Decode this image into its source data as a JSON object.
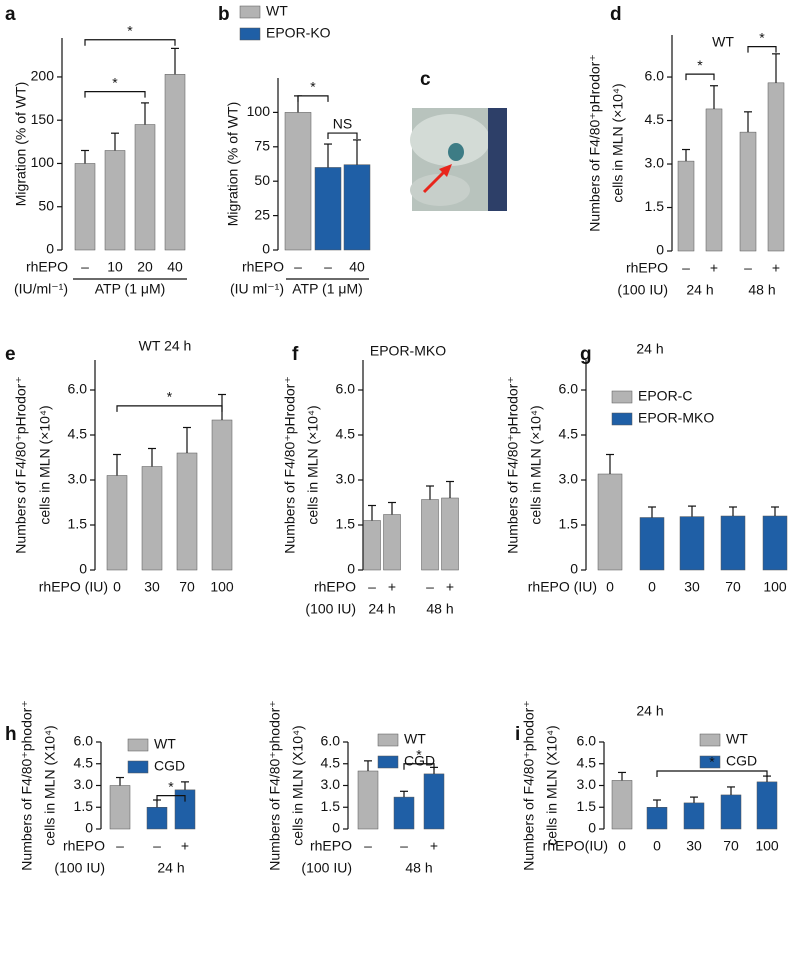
{
  "chart_data": [
    {
      "type": "bar",
      "panel": "a",
      "ylabel": [
        "Migration (% of WT)"
      ],
      "ylim": [
        0,
        245
      ],
      "yticks": [
        0,
        50,
        100,
        150,
        200
      ],
      "categories": [
        "–",
        "10",
        "20",
        "40"
      ],
      "row_labels": [
        "rhEPO",
        "(IU/ml⁻¹)"
      ],
      "groups": [
        "ATP (1 μM)"
      ],
      "series": [
        {
          "color": "#b3b3b3",
          "values": [
            100,
            115,
            145,
            203
          ],
          "errors": [
            15,
            20,
            25,
            30
          ]
        }
      ],
      "annotations": [
        "*",
        "*"
      ]
    },
    {
      "type": "bar",
      "panel": "b",
      "ylabel": [
        "Migration (% of WT)"
      ],
      "ylim": [
        0,
        125
      ],
      "yticks": [
        0,
        25,
        50,
        75,
        100
      ],
      "categories": [
        "–",
        "–",
        "40"
      ],
      "row_labels": [
        "rhEPO",
        "(IU ml⁻¹)"
      ],
      "groups": [
        "ATP (1 μM)"
      ],
      "series": [
        {
          "name": "WT",
          "color": "#b3b3b3",
          "values": [
            100,
            null,
            null
          ],
          "errors": [
            12,
            null,
            null
          ]
        },
        {
          "name": "EPOR-KO",
          "color": "#1f5fa6",
          "values": [
            null,
            60,
            62
          ],
          "errors": [
            null,
            17,
            18
          ]
        }
      ],
      "annotations": [
        "*",
        "NS"
      ]
    },
    {
      "type": "bar",
      "panel": "d",
      "title": "WT",
      "ylabel": [
        "Numbers of F4/80⁺pHrodor⁺",
        "cells in MLN (×10⁴)"
      ],
      "ylim": [
        0,
        7.45
      ],
      "yticks": [
        0,
        1.5,
        {
          "value": 3,
          "label": "3.0"
        },
        4.5,
        {
          "value": 6,
          "label": "6.0"
        }
      ],
      "categories": [
        "–",
        "+",
        "–",
        "+"
      ],
      "row_labels": [
        "rhEPO",
        "(100 IU)"
      ],
      "groups": [
        "24 h",
        "48 h"
      ],
      "series": [
        {
          "color": "#b3b3b3",
          "values": [
            3.1,
            4.9,
            4.1,
            5.8
          ],
          "errors": [
            0.4,
            0.8,
            0.7,
            1.0
          ]
        }
      ],
      "annotations": [
        "*",
        "*"
      ]
    },
    {
      "type": "bar",
      "panel": "e",
      "title": "WT 24 h",
      "ylabel": [
        "Numbers of F4/80⁺pHrodor⁺",
        "cells in MLN (×10⁴)"
      ],
      "ylim": [
        0,
        7.0
      ],
      "yticks": [
        0,
        1.5,
        {
          "value": 3,
          "label": "3.0"
        },
        4.5,
        {
          "value": 6,
          "label": "6.0"
        }
      ],
      "categories": [
        "0",
        "30",
        "70",
        "100"
      ],
      "row_labels": [
        "rhEPO (IU)"
      ],
      "series": [
        {
          "color": "#b3b3b3",
          "values": [
            3.15,
            3.45,
            3.9,
            5.0
          ],
          "errors": [
            0.7,
            0.6,
            0.85,
            0.85
          ]
        }
      ],
      "annotations": [
        "*"
      ]
    },
    {
      "type": "bar",
      "panel": "f",
      "title": "EPOR-MKO",
      "ylabel": [
        "Numbers of F4/80⁺pHrodor⁺",
        "cells in MLN (×10⁴)"
      ],
      "ylim": [
        0,
        7.0
      ],
      "yticks": [
        0,
        1.5,
        {
          "value": 3,
          "label": "3.0"
        },
        4.5,
        {
          "value": 6,
          "label": "6.0"
        }
      ],
      "categories": [
        "–",
        "+",
        "–",
        "+"
      ],
      "row_labels": [
        "rhEPO",
        "(100 IU)"
      ],
      "groups": [
        "24 h",
        "48 h"
      ],
      "series": [
        {
          "color": "#b3b3b3",
          "values": [
            1.65,
            1.85,
            2.35,
            2.4
          ],
          "errors": [
            0.5,
            0.4,
            0.45,
            0.55
          ]
        }
      ]
    },
    {
      "type": "bar",
      "panel": "g",
      "title": "24 h",
      "ylabel": [
        "Numbers of F4/80⁺pHrodor⁺",
        "cells in MLN (×10⁴)"
      ],
      "ylim": [
        0,
        7.0
      ],
      "yticks": [
        0,
        1.5,
        {
          "value": 3,
          "label": "3.0"
        },
        4.5,
        {
          "value": 6,
          "label": "6.0"
        }
      ],
      "categories": [
        "0",
        "0",
        "30",
        "70",
        "100"
      ],
      "row_labels": [
        "rhEPO (IU)"
      ],
      "series": [
        {
          "name": "EPOR-C",
          "color": "#b3b3b3",
          "values": [
            3.2,
            null,
            null,
            null,
            null
          ],
          "errors": [
            0.65,
            null,
            null,
            null,
            null
          ]
        },
        {
          "name": "EPOR-MKO",
          "color": "#1f5fa6",
          "values": [
            null,
            1.75,
            1.78,
            1.8,
            1.8
          ],
          "errors": [
            null,
            0.35,
            0.35,
            0.3,
            0.3
          ]
        }
      ]
    },
    {
      "type": "bar",
      "panel": "h",
      "ylabel": [
        "Numbers of F4/80⁺phodor⁺",
        "cells in MLN (X10⁴)"
      ],
      "ylim": [
        0,
        6.0
      ],
      "yticks": [
        0,
        1.5,
        {
          "value": 3,
          "label": "3.0"
        },
        4.5,
        {
          "value": 6,
          "label": "6.0"
        }
      ],
      "categories": [
        "–",
        "–",
        "+"
      ],
      "row_labels": [
        "rhEPO",
        "(100 IU)"
      ],
      "groups": [
        "24 h"
      ],
      "series": [
        {
          "name": "WT",
          "color": "#b3b3b3",
          "values": [
            3.0,
            null,
            null
          ],
          "errors": [
            0.55,
            null,
            null
          ]
        },
        {
          "name": "CGD",
          "color": "#1f5fa6",
          "values": [
            null,
            1.5,
            2.7
          ],
          "errors": [
            null,
            0.5,
            0.55
          ]
        }
      ],
      "annotations": [
        "*"
      ]
    },
    {
      "type": "bar",
      "ylabel": [
        "Numbers of F4/80⁺phodor⁺",
        "cells in MLN (X10⁴)"
      ],
      "ylim": [
        0,
        6.0
      ],
      "yticks": [
        0,
        1.5,
        {
          "value": 3,
          "label": "3.0"
        },
        4.5,
        {
          "value": 6,
          "label": "6.0"
        }
      ],
      "categories": [
        "–",
        "–",
        "+"
      ],
      "row_labels": [
        "rhEPO",
        "(100 IU)"
      ],
      "groups": [
        "48 h"
      ],
      "series": [
        {
          "name": "WT",
          "color": "#b3b3b3",
          "values": [
            4.0,
            null,
            null
          ],
          "errors": [
            0.7,
            null,
            null
          ]
        },
        {
          "name": "CGD",
          "color": "#1f5fa6",
          "values": [
            null,
            2.2,
            3.8
          ],
          "errors": [
            null,
            0.4,
            0.45
          ]
        }
      ],
      "annotations": [
        "*"
      ]
    },
    {
      "type": "bar",
      "panel": "i",
      "title": "24 h",
      "ylabel": [
        "Numbers of F4/80⁺phodor⁺",
        "cells in MLN (X10⁴)"
      ],
      "ylim": [
        0,
        6.0
      ],
      "yticks": [
        0,
        1.5,
        {
          "value": 3,
          "label": "3.0"
        },
        4.5,
        {
          "value": 6,
          "label": "6.0"
        }
      ],
      "categories": [
        "0",
        "0",
        "30",
        "70",
        "100"
      ],
      "row_labels": [
        "rhEPO(IU)"
      ],
      "series": [
        {
          "name": "WT",
          "color": "#b3b3b3",
          "values": [
            3.35,
            null,
            null,
            null,
            null
          ],
          "errors": [
            0.55,
            null,
            null,
            null,
            null
          ]
        },
        {
          "name": "CGD",
          "color": "#1f5fa6",
          "values": [
            null,
            1.5,
            1.8,
            2.35,
            3.25
          ],
          "errors": [
            null,
            0.5,
            0.4,
            0.55,
            0.4
          ]
        }
      ],
      "annotations": [
        "*"
      ]
    }
  ],
  "photo_panel": {
    "label": "c"
  }
}
